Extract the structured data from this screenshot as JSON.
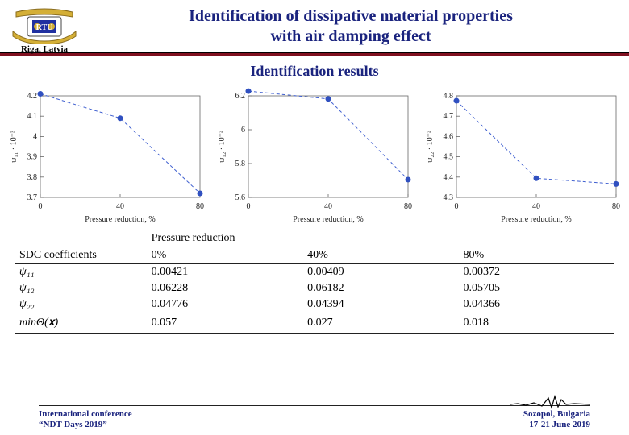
{
  "header": {
    "logo_caption": "Riga, Latvia",
    "title_l1": "Identification of dissipative material properties",
    "title_l2": "with air damping effect"
  },
  "subtitle": "Identification results",
  "charts": [
    {
      "xlabel": "Pressure reduction, %",
      "ylabel": "ψ₁₁ · 10⁻³",
      "xlim": [
        0,
        80
      ],
      "xticks": [
        0,
        40,
        80
      ],
      "ylim": [
        3.7,
        4.2
      ],
      "yticks": [
        3.7,
        3.8,
        3.9,
        4.0,
        4.1,
        4.2
      ],
      "ytick_labels": [
        "3.7",
        "3.8",
        "3.9",
        "4",
        "4.1",
        "4.2"
      ],
      "points": [
        [
          0,
          4.21
        ],
        [
          40,
          4.09
        ],
        [
          80,
          3.72
        ]
      ],
      "line_color": "#4060d0",
      "marker_color": "#3050c0",
      "marker_size": 3.5,
      "dash": "4 3",
      "line_width": 1,
      "bg": "#ffffff",
      "axis_color": "#666666"
    },
    {
      "xlabel": "Pressure reduction, %",
      "ylabel": "ψ₁₂ · 10⁻²",
      "xlim": [
        0,
        80
      ],
      "xticks": [
        0,
        40,
        80
      ],
      "ylim": [
        5.6,
        6.2
      ],
      "yticks": [
        5.6,
        5.8,
        6.0,
        6.2
      ],
      "ytick_labels": [
        "5.6",
        "5.8",
        "6",
        "6.2"
      ],
      "points": [
        [
          0,
          6.228
        ],
        [
          40,
          6.182
        ],
        [
          80,
          5.705
        ]
      ],
      "line_color": "#4060d0",
      "marker_color": "#3050c0",
      "marker_size": 3.5,
      "dash": "4 3",
      "line_width": 1,
      "bg": "#ffffff",
      "axis_color": "#666666"
    },
    {
      "xlabel": "Pressure reduction, %",
      "ylabel": "ψ₂₂ · 10⁻²",
      "xlim": [
        0,
        80
      ],
      "xticks": [
        0,
        40,
        80
      ],
      "ylim": [
        4.3,
        4.8
      ],
      "yticks": [
        4.3,
        4.4,
        4.5,
        4.6,
        4.7,
        4.8
      ],
      "ytick_labels": [
        "4.3",
        "4.4",
        "4.5",
        "4.6",
        "4.7",
        "4.8"
      ],
      "points": [
        [
          0,
          4.776
        ],
        [
          40,
          4.394
        ],
        [
          80,
          4.366
        ]
      ],
      "line_color": "#4060d0",
      "marker_color": "#3050c0",
      "marker_size": 3.5,
      "dash": "4 3",
      "line_width": 1,
      "bg": "#ffffff",
      "axis_color": "#666666"
    }
  ],
  "table": {
    "row_header_label": "SDC coefficients",
    "col_header_label": "Pressure reduction",
    "columns": [
      "0%",
      "40%",
      "80%"
    ],
    "rows": [
      {
        "label": "ψ₁₁",
        "values": [
          "0.00421",
          "0.00409",
          "0.00372"
        ]
      },
      {
        "label": "ψ₁₂",
        "values": [
          "0.06228",
          "0.06182",
          "0.05705"
        ]
      },
      {
        "label": "ψ₂₂",
        "values": [
          "0.04776",
          "0.04394",
          "0.04366"
        ]
      }
    ],
    "summary": {
      "label": "minΘ(𝐱)",
      "values": [
        "0.057",
        "0.027",
        "0.018"
      ]
    }
  },
  "footer": {
    "left_l1": "International conference",
    "left_l2": "“NDT Days 2019”",
    "right_l1": "Sozopol, Bulgaria",
    "right_l2": "17-21 June 2019"
  }
}
